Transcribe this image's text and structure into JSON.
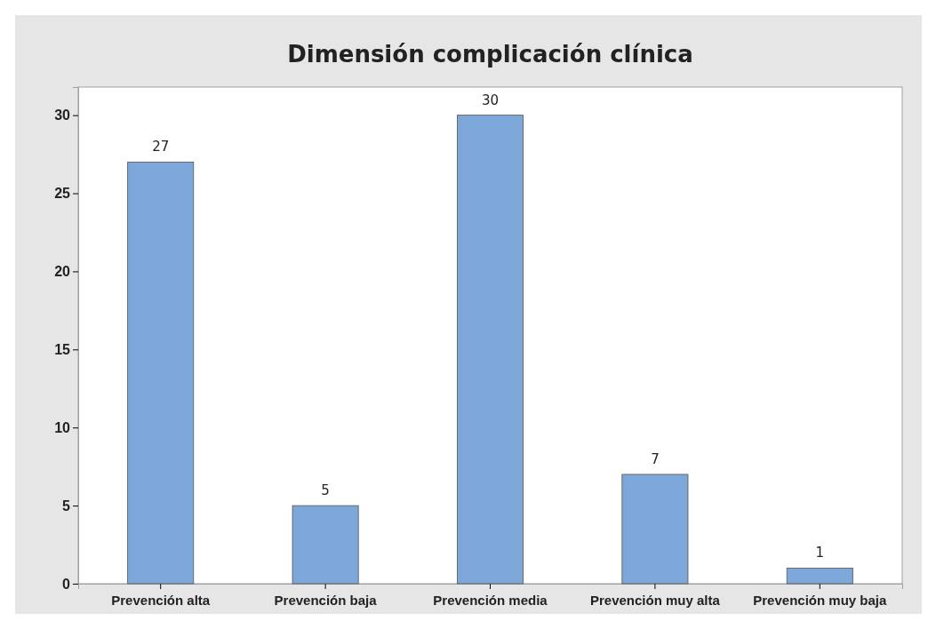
{
  "chart_data": {
    "type": "bar",
    "title": "Dimensión complicación clínica",
    "categories": [
      "Prevención alta",
      "Prevención baja",
      "Prevención media",
      "Prevención muy alta",
      "Prevención muy baja"
    ],
    "values": [
      27,
      5,
      30,
      7,
      1
    ],
    "color": "#7da7d9",
    "ylim": [
      0,
      31.8
    ],
    "yticks": [
      0,
      5,
      10,
      15,
      20,
      25,
      30
    ],
    "grid": false,
    "data_labels": true
  }
}
